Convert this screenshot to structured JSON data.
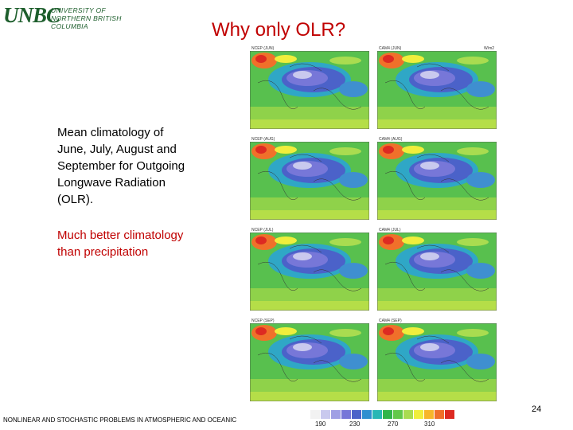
{
  "logo": {
    "mark": "UNBC",
    "line1": "UNIVERSITY OF",
    "line2": "NORTHERN BRITISH COLUMBIA"
  },
  "title": "Why only OLR?",
  "text1": "Mean climatology of June, July, August and September for Outgoing Longwave Radiation (OLR).",
  "text2": "Much better climatology than precipitation",
  "footer": "NONLINEAR AND STOCHASTIC PROBLEMS IN ATMOSPHERIC AND OCEANIC",
  "page_number": "24",
  "figure": {
    "units": "W/m2",
    "panels": [
      {
        "left": "NCEP (JUN)",
        "right": "CAM4 (JUN)"
      },
      {
        "left": "NCEP (AUG)",
        "right": "CAM4 (AUG)"
      },
      {
        "left": "NCEP (JUL)",
        "right": "CAM4 (JUL)"
      },
      {
        "left": "NCEP (SEP)",
        "right": "CAM4 (SEP)"
      }
    ],
    "colorbar_ticks": [
      "190",
      "230",
      "270",
      "310"
    ],
    "colorbar_colors": [
      "#f2f2f2",
      "#c9c9ee",
      "#9f9fe4",
      "#7777d8",
      "#4b62c9",
      "#2f8fd0",
      "#28b7b5",
      "#31b54a",
      "#62c84a",
      "#a9dc50",
      "#f0ee3c",
      "#f7b62a",
      "#f0702a",
      "#dd2a22"
    ]
  }
}
